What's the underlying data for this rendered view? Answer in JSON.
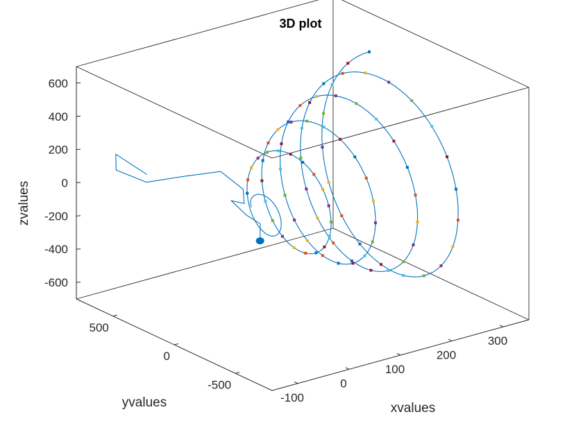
{
  "chart_data": {
    "type": "line3d",
    "title": "3D plot",
    "xlabel": "xvalues",
    "ylabel": "yvalues",
    "zlabel": "zvalues",
    "xlim": [
      -150,
      350
    ],
    "ylim": [
      -800,
      800
    ],
    "zlim": [
      -700,
      700
    ],
    "x_ticks": [
      -100,
      0,
      100,
      200,
      300
    ],
    "y_ticks": [
      500,
      0,
      -500
    ],
    "z_ticks": [
      600,
      400,
      200,
      0,
      -200,
      -400,
      -600
    ],
    "x_tick_labels": [
      "-100",
      "0",
      "100",
      "200",
      "300"
    ],
    "y_tick_labels": [
      "500",
      "0",
      "-500"
    ],
    "z_tick_labels": [
      "600",
      "400",
      "200",
      "0",
      "-200",
      "-400",
      "-600"
    ],
    "grid": false,
    "box": true,
    "line_color": "#0072bd",
    "marker_colors": [
      "#0072bd",
      "#d95319",
      "#edb120",
      "#7e2f8e",
      "#77ac30",
      "#4dbeee",
      "#a2142f"
    ],
    "spiral": {
      "start_x": 0,
      "end_x": 300,
      "turns": 5,
      "max_radius": 650,
      "samples": 400,
      "marker_start_turn": 0.8,
      "marker_every": 4
    },
    "loop_curve": {
      "x": [
        -120,
        -140,
        -120,
        -80,
        -40,
        0,
        20,
        10,
        -20,
        0,
        20,
        10
      ],
      "y": [
        350,
        520,
        600,
        520,
        380,
        250,
        150,
        100,
        80,
        40,
        10,
        -30
      ],
      "z": [
        180,
        260,
        120,
        40,
        90,
        130,
        40,
        -20,
        30,
        -60,
        -120,
        -200
      ]
    }
  }
}
